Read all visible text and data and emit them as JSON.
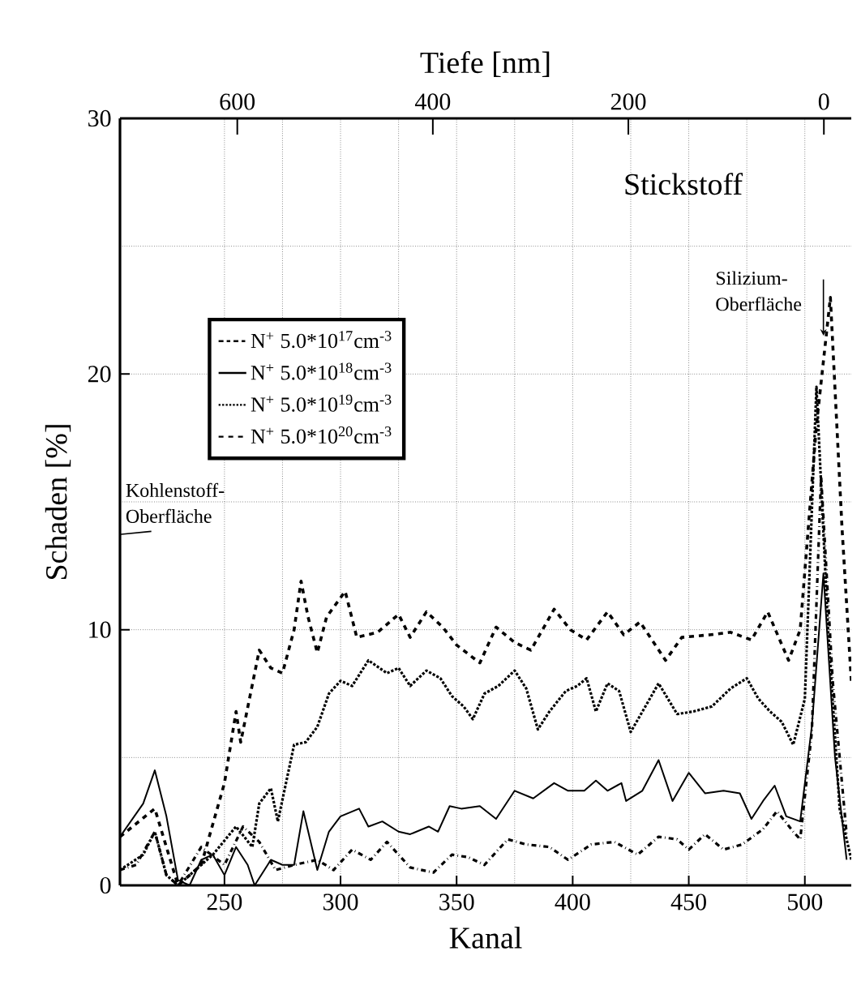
{
  "chart_data": {
    "type": "line",
    "xlabel": "Kanal",
    "ylabel": "Schaden [%]",
    "x2label": "Tiefe [nm]",
    "xlim": [
      205,
      520
    ],
    "xticks": [
      250,
      300,
      350,
      400,
      450,
      500
    ],
    "ylim": [
      0,
      30
    ],
    "yticks": [
      0,
      10,
      20,
      30
    ],
    "x2lim": [
      720,
      -28
    ],
    "x2ticks": [
      600,
      400,
      200,
      0
    ],
    "grid": true,
    "legend": "top left",
    "annotations": [
      "Stickstoff",
      {
        "text": "Silizium-Oberfläche",
        "x": 508,
        "y": 21.5
      },
      "Kohlenstoff-Oberfläche"
    ],
    "series": [
      {
        "name": "N$^{+}$ 5.0*10$^{17}$cm$^{-3}$",
        "color": "#000000",
        "line_style": "dashdot",
        "x": [
          205,
          212,
          220,
          225,
          230,
          240,
          250,
          258,
          265,
          272,
          280,
          290,
          297,
          305,
          313,
          320,
          330,
          340,
          348,
          355,
          362,
          372,
          380,
          390,
          398,
          408,
          418,
          428,
          437,
          445,
          450,
          457,
          465,
          473,
          482,
          488,
          495,
          498,
          503,
          507,
          512,
          518
        ],
        "values": [
          0.6,
          0.8,
          2.1,
          0.4,
          0,
          1.5,
          0.8,
          2.3,
          1.7,
          0.6,
          0.8,
          1,
          0.6,
          1.4,
          1,
          1.7,
          0.7,
          0.5,
          1.2,
          1.1,
          0.8,
          1.8,
          1.6,
          1.5,
          1,
          1.6,
          1.7,
          1.2,
          1.9,
          1.8,
          1.4,
          2,
          1.4,
          1.6,
          2.2,
          2.9,
          2.1,
          1.8,
          6,
          16,
          8,
          2
        ]
      },
      {
        "name": "N$^{+}$ 5.0*10$^{18}$cm$^{-3}$",
        "color": "#000000",
        "line_style": "solid",
        "x": [
          205,
          215,
          220,
          225,
          230,
          235,
          240,
          245,
          250,
          255,
          260,
          263,
          270,
          275,
          280,
          284,
          290,
          295,
          300,
          308,
          312,
          318,
          325,
          330,
          338,
          342,
          347,
          352,
          360,
          367,
          375,
          383,
          392,
          398,
          405,
          410,
          415,
          421,
          423,
          430,
          437,
          443,
          450,
          457,
          465,
          472,
          477,
          482,
          487,
          492,
          498,
          503,
          508,
          513,
          518
        ],
        "values": [
          1.9,
          3.2,
          4.5,
          2.7,
          0.2,
          0,
          1,
          1.2,
          0.4,
          1.5,
          0.8,
          0,
          1,
          0.8,
          0.8,
          2.9,
          0.6,
          2.1,
          2.7,
          3,
          2.3,
          2.5,
          2.1,
          2,
          2.3,
          2.1,
          3.1,
          3,
          3.1,
          2.6,
          3.7,
          3.4,
          4,
          3.7,
          3.7,
          4.1,
          3.7,
          4,
          3.3,
          3.7,
          4.9,
          3.3,
          4.4,
          3.6,
          3.7,
          3.6,
          2.6,
          3.3,
          3.9,
          2.7,
          2.5,
          6.2,
          12.2,
          5,
          1
        ]
      },
      {
        "name": "N$^{+}$ 5.0*10$^{19}$cm$^{-3}$",
        "color": "#000000",
        "line_style": "dotted",
        "x": [
          205,
          215,
          220,
          225,
          230,
          245,
          255,
          262,
          265,
          270,
          273,
          280,
          285,
          290,
          295,
          300,
          305,
          312,
          320,
          325,
          330,
          337,
          343,
          348,
          353,
          357,
          362,
          368,
          375,
          380,
          385,
          390,
          397,
          402,
          406,
          410,
          415,
          420,
          425,
          437,
          445,
          452,
          460,
          468,
          475,
          480,
          485,
          490,
          495,
          500,
          505,
          510,
          515,
          520
        ],
        "values": [
          0.6,
          1.2,
          2.1,
          0.4,
          0,
          1.2,
          2.3,
          1.5,
          3.2,
          3.8,
          2.5,
          5.5,
          5.6,
          6.2,
          7.5,
          8,
          7.8,
          8.8,
          8.3,
          8.5,
          7.8,
          8.4,
          8.1,
          7.4,
          7,
          6.5,
          7.5,
          7.8,
          8.4,
          7.7,
          6.1,
          6.8,
          7.6,
          7.8,
          8.1,
          6.8,
          7.9,
          7.6,
          6,
          7.9,
          6.7,
          6.8,
          7,
          7.7,
          8.1,
          7.3,
          6.8,
          6.4,
          5.5,
          7.3,
          19.5,
          10,
          3,
          1
        ]
      },
      {
        "name": "N$^{+}$ 5.0*10$^{20}$cm$^{-3}$",
        "color": "#000000",
        "line_style": "dashed",
        "x": [
          205,
          220,
          230,
          240,
          250,
          255,
          257,
          265,
          270,
          275,
          280,
          283,
          286,
          290,
          294,
          302,
          307,
          316,
          325,
          330,
          337,
          344,
          350,
          360,
          367,
          375,
          382,
          392,
          399,
          406,
          415,
          422,
          429,
          440,
          447,
          459,
          468,
          477,
          484,
          493,
          498,
          505,
          511,
          516,
          520
        ],
        "values": [
          1.9,
          3,
          0,
          0.8,
          4,
          6.8,
          5.6,
          9.2,
          8.5,
          8.3,
          10,
          11.9,
          10.5,
          9.1,
          10.5,
          11.5,
          9.7,
          9.9,
          10.6,
          9.7,
          10.7,
          10.1,
          9.4,
          8.7,
          10.1,
          9.5,
          9.2,
          10.8,
          10,
          9.6,
          10.7,
          9.8,
          10.3,
          8.8,
          9.7,
          9.8,
          9.9,
          9.6,
          10.7,
          8.8,
          10,
          18,
          23,
          14,
          8
        ]
      }
    ]
  }
}
